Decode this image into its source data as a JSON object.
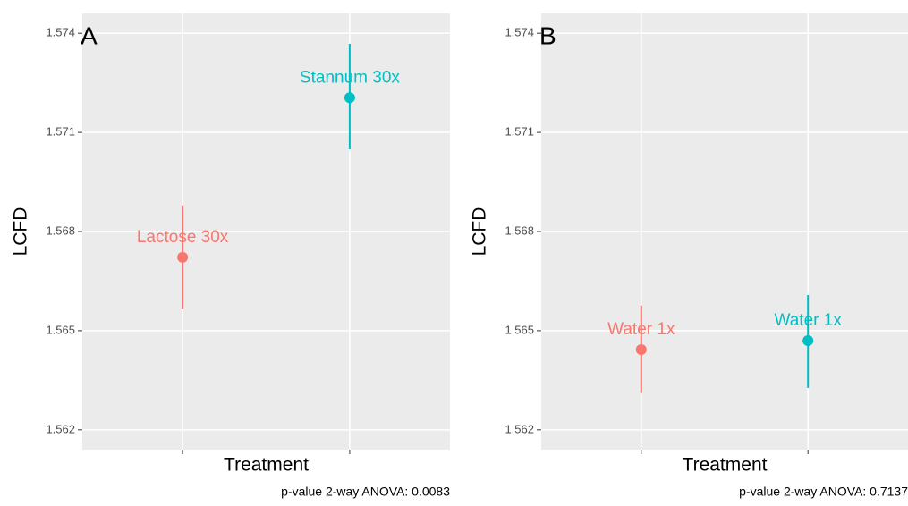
{
  "chart_data": [
    {
      "type": "pointrange",
      "panel_label": "A",
      "x_label": "Treatment",
      "y_label": "LCFD",
      "caption": "p-value 2-way ANOVA: 0.0083",
      "categories": [
        null,
        null
      ],
      "point_labels": [
        "Lactose 30x",
        "Stannum 30x"
      ],
      "colors": [
        "#f8766d",
        "#00bfc4"
      ],
      "values": [
        1.56722,
        1.57205
      ],
      "lower": [
        1.56565,
        1.57049
      ],
      "upper": [
        1.56879,
        1.57368
      ],
      "ylim": [
        1.5614,
        1.5746
      ],
      "yticks": [
        1.562,
        1.565,
        1.568,
        1.571,
        1.574
      ],
      "grid": true
    },
    {
      "type": "pointrange",
      "panel_label": "B",
      "x_label": "Treatment",
      "y_label": "LCFD",
      "caption": "p-value 2-way ANOVA: 0.7137",
      "categories": [
        null,
        null
      ],
      "point_labels": [
        "Water 1x",
        "Water 1x"
      ],
      "colors": [
        "#f8766d",
        "#00bfc4"
      ],
      "values": [
        1.56443,
        1.5647
      ],
      "lower": [
        1.56311,
        1.56327
      ],
      "upper": [
        1.56576,
        1.56608
      ],
      "ylim": [
        1.5614,
        1.5746
      ],
      "yticks": [
        1.562,
        1.565,
        1.568,
        1.571,
        1.574
      ],
      "grid": true
    }
  ]
}
